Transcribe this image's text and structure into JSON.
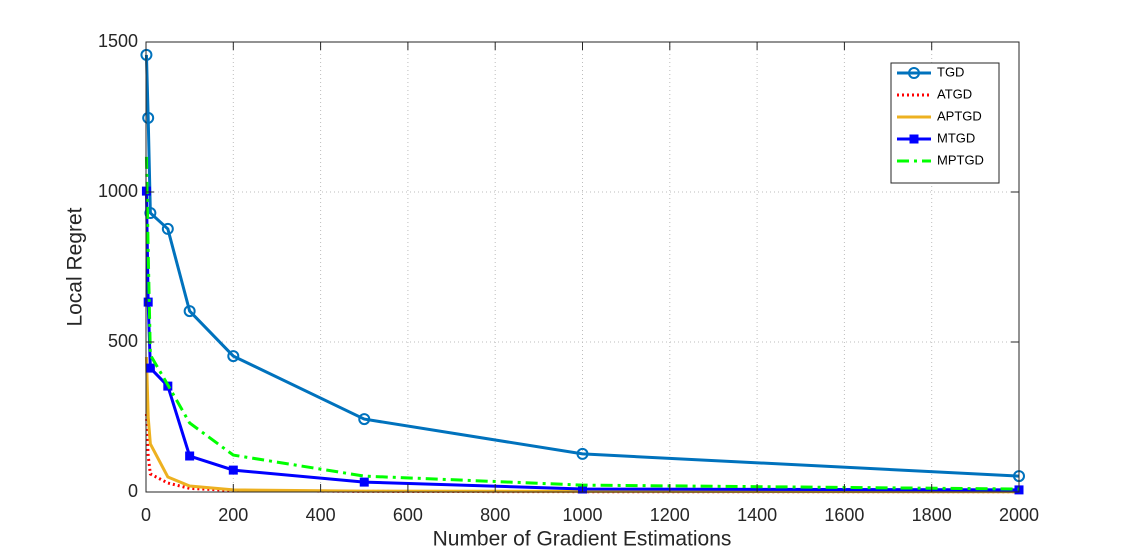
{
  "chart_data": {
    "type": "line",
    "x_label": "Number of Gradient Estimations",
    "y_label": "Local Regret",
    "x": [
      1,
      5,
      10,
      50,
      100,
      200,
      500,
      1000,
      2000
    ],
    "series": [
      {
        "name": "TGD",
        "color": "#0072bd",
        "line_style": "solid",
        "marker": "circle",
        "values": [
          1457,
          1247,
          930,
          877,
          603,
          453,
          243,
          127,
          53
        ]
      },
      {
        "name": "ATGD",
        "color": "#ff0000",
        "line_style": "dotted",
        "marker": "none",
        "values": [
          260,
          120,
          60,
          30,
          12,
          5,
          2,
          1,
          1
        ]
      },
      {
        "name": "APTGD",
        "color": "#edb120",
        "line_style": "solid",
        "marker": "none",
        "values": [
          450,
          250,
          160,
          50,
          20,
          7,
          3,
          2,
          1
        ]
      },
      {
        "name": "MTGD",
        "color": "#0000ff",
        "line_style": "solid",
        "marker": "square",
        "values": [
          1003,
          633,
          413,
          353,
          120,
          73,
          33,
          10,
          7
        ]
      },
      {
        "name": "MPTGD",
        "color": "#00ff00",
        "line_style": "dashdot",
        "marker": "none",
        "values": [
          1117,
          800,
          457,
          357,
          230,
          123,
          53,
          23,
          10
        ]
      }
    ],
    "xlim": [
      0,
      2000
    ],
    "xticks": [
      0,
      200,
      400,
      600,
      800,
      1000,
      1200,
      1400,
      1600,
      1800,
      2000
    ],
    "ylim": [
      0,
      1500
    ],
    "yticks": [
      0,
      500,
      1000,
      1500
    ],
    "grid": true,
    "legend_position": "upper-right"
  }
}
